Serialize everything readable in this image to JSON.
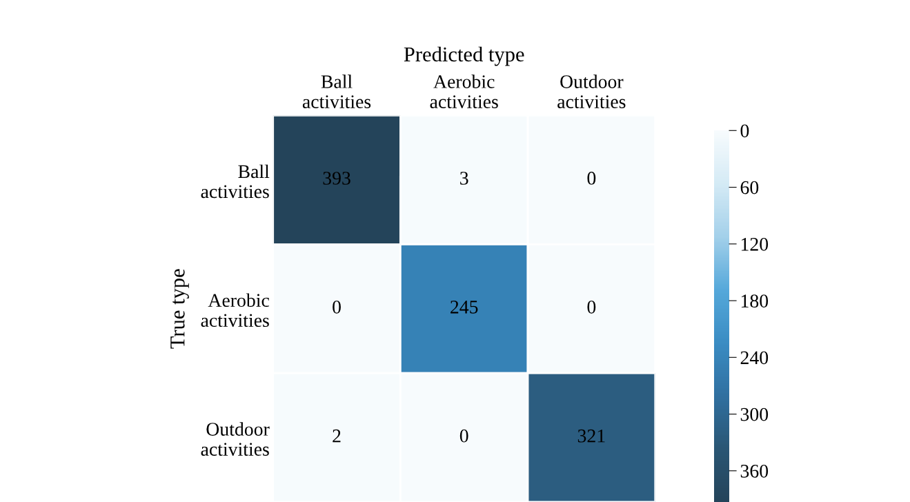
{
  "chart_data": {
    "type": "heatmap",
    "xlabel": "Predicted type",
    "ylabel": "True type",
    "categories": [
      "Ball\nactivities",
      "Aerobic\nactivities",
      "Outdoor\nactivities"
    ],
    "y_categories": [
      "Ball\nactivities",
      "Aerobic\nactivities",
      "Outdoor\nactivities"
    ],
    "cells": [
      [
        393,
        3,
        0
      ],
      [
        0,
        245,
        0
      ],
      [
        2,
        0,
        321
      ]
    ],
    "data_labels": true,
    "clim": [
      0,
      393
    ],
    "cticks": [
      0,
      60,
      120,
      180,
      240,
      300,
      360
    ],
    "colors": [
      "#f7fbfd",
      "#d4eaf5",
      "#a3d0ea",
      "#55a8da",
      "#3a8cc3",
      "#3070a0",
      "#2a5674",
      "#24445a"
    ]
  }
}
